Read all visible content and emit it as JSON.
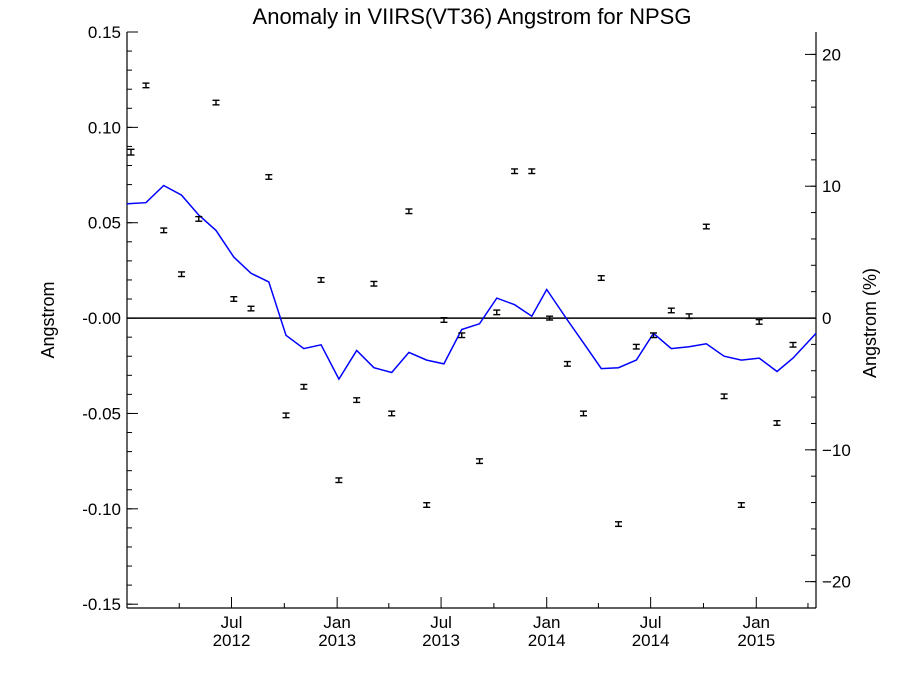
{
  "chart_data": {
    "type": "scatter",
    "title": "Anomaly in VIIRS(VT36) Angstrom for NPSG",
    "ylabel": "Angstrom",
    "ylabel_right": "Angstrom (%)",
    "xlim": [
      "2012-01-01",
      "2015-04-15"
    ],
    "ylim": [
      -0.152,
      0.15
    ],
    "ylim_right": [
      -22.0,
      21.7
    ],
    "y_ticks": [
      0.15,
      0.1,
      0.05,
      0.0,
      -0.05,
      -0.1,
      -0.15
    ],
    "y_tick_labels": [
      "0.15",
      "0.10",
      "0.05",
      "-0.00",
      "-0.05",
      "-0.10",
      "-0.15"
    ],
    "y_right_ticks": [
      20,
      10,
      0,
      -10,
      -20
    ],
    "y_right_tick_labels": [
      "20",
      "10",
      "0",
      "−10",
      "−20"
    ],
    "x_ticks": [
      {
        "date": "2012-07-01",
        "month": "Jul",
        "year": "2012"
      },
      {
        "date": "2013-01-01",
        "month": "Jan",
        "year": "2013"
      },
      {
        "date": "2013-07-01",
        "month": "Jul",
        "year": "2013"
      },
      {
        "date": "2014-01-01",
        "month": "Jan",
        "year": "2014"
      },
      {
        "date": "2014-07-01",
        "month": "Jul",
        "year": "2014"
      },
      {
        "date": "2015-01-01",
        "month": "Jan",
        "year": "2015"
      }
    ],
    "reference_line": 0,
    "grid": false,
    "series": [
      {
        "role": "monthly anomaly",
        "marker": "error bar",
        "color": "#000000",
        "points": [
          {
            "x": "2012-01-08",
            "y": 0.087,
            "err": 0.0015
          },
          {
            "x": "2012-02-03",
            "y": 0.122,
            "err": 0.0012
          },
          {
            "x": "2012-03-05",
            "y": 0.046,
            "err": 0.0012
          },
          {
            "x": "2012-04-05",
            "y": 0.023,
            "err": 0.0012
          },
          {
            "x": "2012-05-05",
            "y": 0.052,
            "err": 0.0012
          },
          {
            "x": "2012-06-04",
            "y": 0.113,
            "err": 0.0012
          },
          {
            "x": "2012-07-05",
            "y": 0.01,
            "err": 0.0012
          },
          {
            "x": "2012-08-04",
            "y": 0.005,
            "err": 0.0012
          },
          {
            "x": "2012-09-04",
            "y": 0.074,
            "err": 0.0012
          },
          {
            "x": "2012-10-04",
            "y": -0.051,
            "err": 0.0012
          },
          {
            "x": "2012-11-04",
            "y": -0.036,
            "err": 0.0012
          },
          {
            "x": "2012-12-04",
            "y": 0.02,
            "err": 0.0012
          },
          {
            "x": "2013-01-04",
            "y": -0.085,
            "err": 0.0012
          },
          {
            "x": "2013-02-04",
            "y": -0.043,
            "err": 0.0012
          },
          {
            "x": "2013-03-06",
            "y": 0.018,
            "err": 0.0012
          },
          {
            "x": "2013-04-06",
            "y": -0.05,
            "err": 0.0012
          },
          {
            "x": "2013-05-06",
            "y": 0.056,
            "err": 0.0012
          },
          {
            "x": "2013-06-06",
            "y": -0.098,
            "err": 0.0012
          },
          {
            "x": "2013-07-06",
            "y": -0.001,
            "err": 0.0012
          },
          {
            "x": "2013-08-06",
            "y": -0.009,
            "err": 0.0012
          },
          {
            "x": "2013-09-06",
            "y": -0.075,
            "err": 0.0012
          },
          {
            "x": "2013-10-06",
            "y": 0.003,
            "err": 0.0012
          },
          {
            "x": "2013-11-06",
            "y": 0.077,
            "err": 0.0012
          },
          {
            "x": "2013-12-06",
            "y": 0.077,
            "err": 0.0012
          },
          {
            "x": "2014-01-06",
            "y": 0.0,
            "err": 0.001
          },
          {
            "x": "2014-02-06",
            "y": -0.024,
            "err": 0.0012
          },
          {
            "x": "2014-03-06",
            "y": -0.05,
            "err": 0.0012
          },
          {
            "x": "2014-04-06",
            "y": 0.021,
            "err": 0.0012
          },
          {
            "x": "2014-05-06",
            "y": -0.108,
            "err": 0.0012
          },
          {
            "x": "2014-06-06",
            "y": -0.015,
            "err": 0.0012
          },
          {
            "x": "2014-07-06",
            "y": -0.009,
            "err": 0.0012
          },
          {
            "x": "2014-08-06",
            "y": 0.004,
            "err": 0.0012
          },
          {
            "x": "2014-09-06",
            "y": 0.001,
            "err": 0.0012
          },
          {
            "x": "2014-10-06",
            "y": 0.048,
            "err": 0.0012
          },
          {
            "x": "2014-11-06",
            "y": -0.041,
            "err": 0.0012
          },
          {
            "x": "2014-12-06",
            "y": -0.098,
            "err": 0.0012
          },
          {
            "x": "2015-01-06",
            "y": -0.002,
            "err": 0.0012
          },
          {
            "x": "2015-02-06",
            "y": -0.055,
            "err": 0.0012
          },
          {
            "x": "2015-03-06",
            "y": -0.014,
            "err": 0.0012
          }
        ]
      },
      {
        "role": "running mean",
        "marker": "line",
        "color": "#0000ff",
        "points": [
          {
            "x": "2012-01-01",
            "y": 0.06
          },
          {
            "x": "2012-02-03",
            "y": 0.0605
          },
          {
            "x": "2012-03-05",
            "y": 0.0695
          },
          {
            "x": "2012-04-05",
            "y": 0.0645
          },
          {
            "x": "2012-05-05",
            "y": 0.054
          },
          {
            "x": "2012-06-04",
            "y": 0.046
          },
          {
            "x": "2012-07-05",
            "y": 0.032
          },
          {
            "x": "2012-08-04",
            "y": 0.0235
          },
          {
            "x": "2012-09-04",
            "y": 0.019
          },
          {
            "x": "2012-10-04",
            "y": -0.009
          },
          {
            "x": "2012-11-04",
            "y": -0.016
          },
          {
            "x": "2012-12-04",
            "y": -0.014
          },
          {
            "x": "2013-01-04",
            "y": -0.032
          },
          {
            "x": "2013-02-04",
            "y": -0.017
          },
          {
            "x": "2013-03-06",
            "y": -0.026
          },
          {
            "x": "2013-04-06",
            "y": -0.0285
          },
          {
            "x": "2013-05-06",
            "y": -0.018
          },
          {
            "x": "2013-06-06",
            "y": -0.022
          },
          {
            "x": "2013-07-06",
            "y": -0.024
          },
          {
            "x": "2013-08-06",
            "y": -0.006
          },
          {
            "x": "2013-09-06",
            "y": -0.003
          },
          {
            "x": "2013-10-06",
            "y": 0.0105
          },
          {
            "x": "2013-11-06",
            "y": 0.007
          },
          {
            "x": "2013-12-06",
            "y": 0.001
          },
          {
            "x": "2014-01-01",
            "y": 0.015
          },
          {
            "x": "2014-02-06",
            "y": -0.001
          },
          {
            "x": "2014-03-06",
            "y": -0.013
          },
          {
            "x": "2014-04-06",
            "y": -0.0265
          },
          {
            "x": "2014-05-06",
            "y": -0.026
          },
          {
            "x": "2014-06-06",
            "y": -0.022
          },
          {
            "x": "2014-07-06",
            "y": -0.008
          },
          {
            "x": "2014-08-06",
            "y": -0.016
          },
          {
            "x": "2014-09-06",
            "y": -0.015
          },
          {
            "x": "2014-10-06",
            "y": -0.0135
          },
          {
            "x": "2014-11-06",
            "y": -0.02
          },
          {
            "x": "2014-12-06",
            "y": -0.022
          },
          {
            "x": "2015-01-06",
            "y": -0.021
          },
          {
            "x": "2015-02-06",
            "y": -0.028
          },
          {
            "x": "2015-03-06",
            "y": -0.021
          },
          {
            "x": "2015-04-15",
            "y": -0.008
          }
        ]
      }
    ]
  }
}
